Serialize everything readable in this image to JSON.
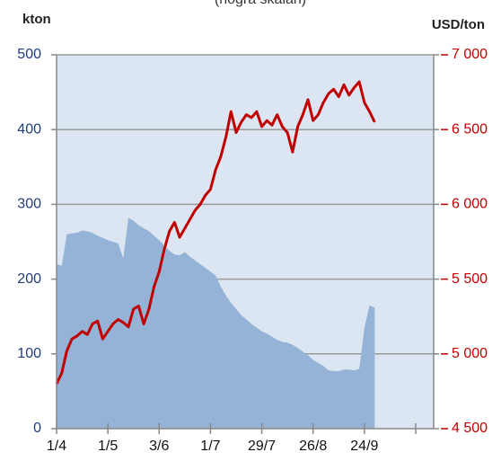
{
  "chart_data": {
    "type": "area-line",
    "subtitle": "(högra skalan)",
    "y_label": "kton",
    "y2_label": "USD/ton",
    "x": [
      0,
      2,
      4,
      6,
      8,
      10,
      12,
      14,
      16,
      18,
      20,
      22,
      24,
      26,
      28,
      30,
      32,
      34,
      36,
      38,
      40,
      42,
      44,
      46,
      48,
      50,
      52,
      54,
      56,
      58,
      60,
      62,
      64,
      66,
      68,
      70,
      72,
      74,
      76,
      78,
      80,
      82,
      84,
      86,
      88,
      90,
      92,
      94,
      96,
      98,
      100,
      102,
      104,
      106,
      108,
      110,
      112,
      114,
      116,
      118,
      120,
      122,
      124
    ],
    "series": [
      {
        "color": "#95b3d7",
        "axis": "y",
        "values": [
          220,
          218,
          260,
          261,
          262,
          265,
          264,
          262,
          258,
          255,
          252,
          250,
          248,
          228,
          282,
          278,
          272,
          268,
          264,
          258,
          252,
          245,
          238,
          233,
          232,
          236,
          230,
          225,
          220,
          215,
          210,
          205,
          190,
          178,
          168,
          160,
          152,
          146,
          140,
          135,
          130,
          127,
          123,
          119,
          116,
          115,
          112,
          108,
          103,
          98,
          92,
          88,
          84,
          78,
          77,
          77,
          79,
          79,
          78,
          80,
          135,
          165,
          162
        ]
      },
      {
        "color": "#c00000",
        "axis": "y2",
        "values": [
          4800,
          4870,
          5020,
          5100,
          5120,
          5150,
          5130,
          5200,
          5220,
          5100,
          5150,
          5200,
          5230,
          5210,
          5180,
          5300,
          5320,
          5200,
          5300,
          5450,
          5550,
          5700,
          5820,
          5880,
          5780,
          5840,
          5900,
          5960,
          6000,
          6060,
          6100,
          6230,
          6320,
          6450,
          6620,
          6480,
          6550,
          6600,
          6580,
          6620,
          6520,
          6560,
          6530,
          6600,
          6520,
          6480,
          6350,
          6520,
          6600,
          6700,
          6560,
          6600,
          6680,
          6740,
          6770,
          6720,
          6800,
          6730,
          6780,
          6820,
          6680,
          6620,
          6550
        ]
      }
    ],
    "xlim": [
      0,
      147
    ],
    "xticks": [
      {
        "value": 0,
        "label": "1/4"
      },
      {
        "value": 20,
        "label": "1/5"
      },
      {
        "value": 40,
        "label": "3/6"
      },
      {
        "value": 60,
        "label": "1/7"
      },
      {
        "value": 80,
        "label": "29/7"
      },
      {
        "value": 100,
        "label": "26/8"
      },
      {
        "value": 120,
        "label": "24/9"
      },
      {
        "value": 140,
        "label": null
      }
    ],
    "ylim": [
      0,
      500
    ],
    "yticks": [
      0,
      100,
      200,
      300,
      400,
      500
    ],
    "y2lim": [
      4500,
      7000
    ],
    "y2ticks": [
      {
        "value": 4500,
        "label": "4 500"
      },
      {
        "value": 5000,
        "label": "5 000"
      },
      {
        "value": 5500,
        "label": "5 500"
      },
      {
        "value": 6000,
        "label": "6 000"
      },
      {
        "value": 6500,
        "label": "6 500"
      },
      {
        "value": 7000,
        "label": "7 000"
      }
    ],
    "grid": true
  }
}
